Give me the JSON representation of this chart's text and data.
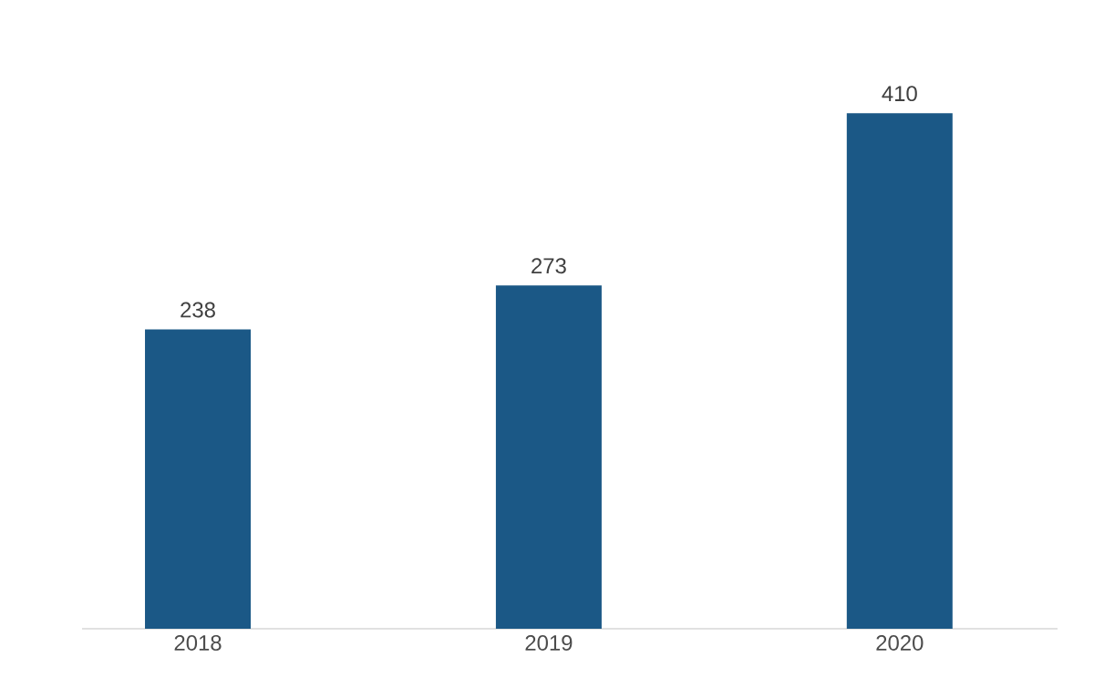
{
  "chart_data": {
    "type": "bar",
    "categories": [
      "2018",
      "2019",
      "2020"
    ],
    "values": [
      238,
      273,
      410
    ],
    "color": "#1b5886",
    "data_labels": true
  }
}
